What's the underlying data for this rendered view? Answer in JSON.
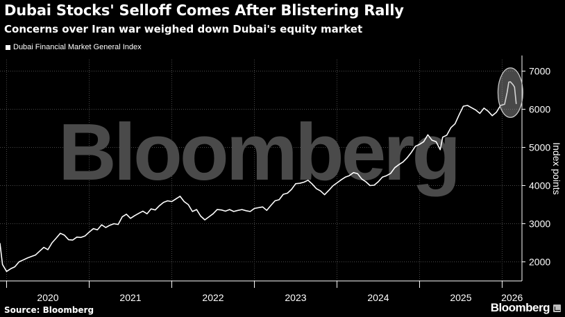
{
  "header": {
    "title": "Dubai Stocks' Selloff Comes After Blistering Rally",
    "subtitle": "Concerns over Iran war weighed down Dubai's equity market"
  },
  "footer": {
    "source": "Source: Bloomberg",
    "brand": "Bloomberg"
  },
  "watermark": "Bloomberg",
  "colors": {
    "background": "#000000",
    "line": "#ffffff",
    "gridline": "#4a4a4a",
    "highlight_circle": "#cfcfcf"
  },
  "chart_data": {
    "type": "line",
    "series": [
      {
        "name": "Dubai Financial Market General Index",
        "points": [
          [
            2019.92,
            2480
          ],
          [
            2019.95,
            1930
          ],
          [
            2020.0,
            1750
          ],
          [
            2020.05,
            1820
          ],
          [
            2020.1,
            1870
          ],
          [
            2020.15,
            2000
          ],
          [
            2020.2,
            2050
          ],
          [
            2020.25,
            2100
          ],
          [
            2020.3,
            2140
          ],
          [
            2020.35,
            2180
          ],
          [
            2020.4,
            2280
          ],
          [
            2020.45,
            2380
          ],
          [
            2020.5,
            2320
          ],
          [
            2020.55,
            2500
          ],
          [
            2020.6,
            2620
          ],
          [
            2020.65,
            2750
          ],
          [
            2020.7,
            2700
          ],
          [
            2020.75,
            2580
          ],
          [
            2020.8,
            2570
          ],
          [
            2020.85,
            2650
          ],
          [
            2020.9,
            2640
          ],
          [
            2020.95,
            2680
          ],
          [
            2021.0,
            2780
          ],
          [
            2021.05,
            2870
          ],
          [
            2021.1,
            2840
          ],
          [
            2021.15,
            2970
          ],
          [
            2021.2,
            2900
          ],
          [
            2021.25,
            2960
          ],
          [
            2021.3,
            3000
          ],
          [
            2021.35,
            2980
          ],
          [
            2021.4,
            3180
          ],
          [
            2021.45,
            3250
          ],
          [
            2021.5,
            3140
          ],
          [
            2021.55,
            3210
          ],
          [
            2021.6,
            3270
          ],
          [
            2021.65,
            3330
          ],
          [
            2021.7,
            3260
          ],
          [
            2021.75,
            3390
          ],
          [
            2021.8,
            3360
          ],
          [
            2021.85,
            3470
          ],
          [
            2021.9,
            3560
          ],
          [
            2021.95,
            3600
          ],
          [
            2022.0,
            3580
          ],
          [
            2022.05,
            3650
          ],
          [
            2022.1,
            3720
          ],
          [
            2022.15,
            3580
          ],
          [
            2022.2,
            3500
          ],
          [
            2022.25,
            3320
          ],
          [
            2022.3,
            3370
          ],
          [
            2022.35,
            3200
          ],
          [
            2022.4,
            3100
          ],
          [
            2022.45,
            3180
          ],
          [
            2022.5,
            3260
          ],
          [
            2022.55,
            3370
          ],
          [
            2022.6,
            3360
          ],
          [
            2022.65,
            3330
          ],
          [
            2022.7,
            3370
          ],
          [
            2022.75,
            3320
          ],
          [
            2022.8,
            3350
          ],
          [
            2022.85,
            3370
          ],
          [
            2022.9,
            3340
          ],
          [
            2022.95,
            3320
          ],
          [
            2023.0,
            3400
          ],
          [
            2023.05,
            3420
          ],
          [
            2023.1,
            3440
          ],
          [
            2023.15,
            3350
          ],
          [
            2023.2,
            3480
          ],
          [
            2023.25,
            3600
          ],
          [
            2023.3,
            3630
          ],
          [
            2023.35,
            3770
          ],
          [
            2023.4,
            3800
          ],
          [
            2023.45,
            3900
          ],
          [
            2023.5,
            4050
          ],
          [
            2023.55,
            4060
          ],
          [
            2023.6,
            4090
          ],
          [
            2023.65,
            4140
          ],
          [
            2023.7,
            4040
          ],
          [
            2023.75,
            3920
          ],
          [
            2023.8,
            3860
          ],
          [
            2023.85,
            3760
          ],
          [
            2023.9,
            3870
          ],
          [
            2023.95,
            3990
          ],
          [
            2024.0,
            4070
          ],
          [
            2024.05,
            4150
          ],
          [
            2024.1,
            4220
          ],
          [
            2024.15,
            4260
          ],
          [
            2024.2,
            4340
          ],
          [
            2024.25,
            4310
          ],
          [
            2024.3,
            4170
          ],
          [
            2024.35,
            4100
          ],
          [
            2024.4,
            4000
          ],
          [
            2024.45,
            4010
          ],
          [
            2024.5,
            4100
          ],
          [
            2024.55,
            4220
          ],
          [
            2024.6,
            4260
          ],
          [
            2024.65,
            4320
          ],
          [
            2024.7,
            4470
          ],
          [
            2024.75,
            4550
          ],
          [
            2024.8,
            4620
          ],
          [
            2024.85,
            4730
          ],
          [
            2024.9,
            4870
          ],
          [
            2024.95,
            5030
          ],
          [
            2025.0,
            5080
          ],
          [
            2025.05,
            5150
          ],
          [
            2025.1,
            5330
          ],
          [
            2025.15,
            5190
          ],
          [
            2025.2,
            5150
          ],
          [
            2025.25,
            4940
          ],
          [
            2025.28,
            5270
          ],
          [
            2025.33,
            5320
          ],
          [
            2025.38,
            5520
          ],
          [
            2025.43,
            5620
          ],
          [
            2025.48,
            5860
          ],
          [
            2025.53,
            6080
          ],
          [
            2025.58,
            6100
          ],
          [
            2025.63,
            6040
          ],
          [
            2025.68,
            5980
          ],
          [
            2025.73,
            5890
          ],
          [
            2025.78,
            6030
          ],
          [
            2025.83,
            5950
          ],
          [
            2025.88,
            5830
          ],
          [
            2025.93,
            5920
          ],
          [
            2025.98,
            6100
          ],
          [
            2026.03,
            6130
          ],
          [
            2026.06,
            6440
          ],
          [
            2026.08,
            6710
          ],
          [
            2026.1,
            6720
          ],
          [
            2026.13,
            6650
          ],
          [
            2026.15,
            6580
          ],
          [
            2026.17,
            6150
          ]
        ]
      }
    ],
    "xlim": [
      2019.92,
      2026.24
    ],
    "x_ticks": [
      {
        "year": 2020,
        "label": "2020"
      },
      {
        "year": 2021,
        "label": "2021"
      },
      {
        "year": 2022,
        "label": "2022"
      },
      {
        "year": 2023,
        "label": "2023"
      },
      {
        "year": 2024,
        "label": "2024"
      },
      {
        "year": 2025,
        "label": "2025"
      },
      {
        "year": 2026,
        "label": "2026"
      }
    ],
    "ylim": [
      1500,
      7300
    ],
    "y_ticks": [
      2000,
      3000,
      4000,
      5000,
      6000,
      7000
    ],
    "ylabel": "Index points",
    "grid": true,
    "legend_position": "top-left",
    "highlight": {
      "x_start": 2026.0,
      "x_end": 2026.2,
      "y_low": 6150,
      "y_high": 6720
    }
  }
}
